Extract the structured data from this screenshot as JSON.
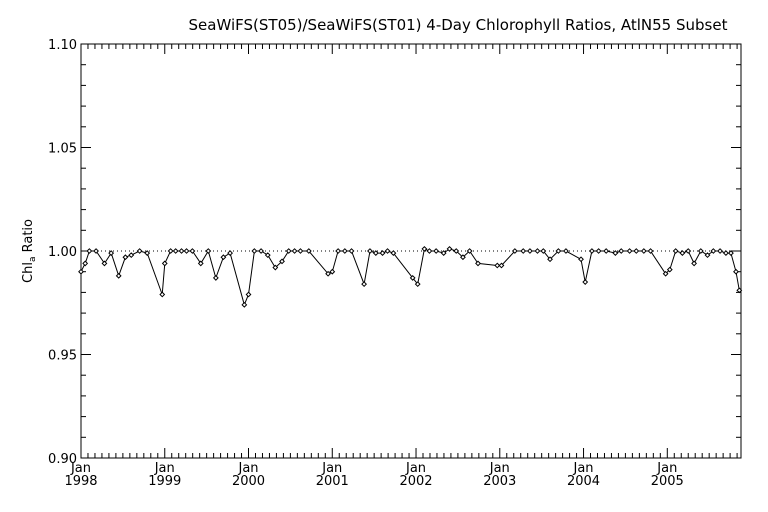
{
  "chart_data": {
    "type": "line",
    "title": "SeaWiFS(ST05)/SeaWiFS(ST01) 4-Day Chlorophyll Ratios, AtlN55 Subset",
    "ylabel": {
      "main": "Chl",
      "sub": "a",
      "rest": " Ratio"
    },
    "xlabel": "",
    "ylim": [
      0.9,
      1.1
    ],
    "xlim": [
      1998.0,
      2005.88
    ],
    "y_ticks": [
      {
        "value": 0.9,
        "label": "0.90"
      },
      {
        "value": 0.95,
        "label": "0.95"
      },
      {
        "value": 1.0,
        "label": "1.00"
      },
      {
        "value": 1.05,
        "label": "1.05"
      },
      {
        "value": 1.1,
        "label": "1.10"
      }
    ],
    "x_ticks": [
      {
        "value": 1998,
        "month": "Jan",
        "year": "1998"
      },
      {
        "value": 1999,
        "month": "Jan",
        "year": "1999"
      },
      {
        "value": 2000,
        "month": "Jan",
        "year": "2000"
      },
      {
        "value": 2001,
        "month": "Jan",
        "year": "2001"
      },
      {
        "value": 2002,
        "month": "Jan",
        "year": "2002"
      },
      {
        "value": 2003,
        "month": "Jan",
        "year": "2003"
      },
      {
        "value": 2004,
        "month": "Jan",
        "year": "2004"
      },
      {
        "value": 2005,
        "month": "Jan",
        "year": "2005"
      }
    ],
    "reference_line": {
      "y": 1.0,
      "style": "dotted"
    },
    "series": [
      {
        "marker": "diamond",
        "points": [
          [
            1998.0,
            0.99
          ],
          [
            1998.05,
            0.994
          ],
          [
            1998.1,
            1.0
          ],
          [
            1998.18,
            1.0
          ],
          [
            1998.28,
            0.994
          ],
          [
            1998.36,
            0.999
          ],
          [
            1998.45,
            0.988
          ],
          [
            1998.53,
            0.997
          ],
          [
            1998.6,
            0.998
          ],
          [
            1998.7,
            1.0
          ],
          [
            1998.79,
            0.999
          ],
          [
            1998.97,
            0.979
          ],
          [
            1999.0,
            0.994
          ],
          [
            1999.07,
            1.0
          ],
          [
            1999.13,
            1.0
          ],
          [
            1999.2,
            1.0
          ],
          [
            1999.26,
            1.0
          ],
          [
            1999.33,
            1.0
          ],
          [
            1999.43,
            0.994
          ],
          [
            1999.52,
            1.0
          ],
          [
            1999.61,
            0.987
          ],
          [
            1999.7,
            0.997
          ],
          [
            1999.78,
            0.999
          ],
          [
            1999.95,
            0.974
          ],
          [
            2000.0,
            0.979
          ],
          [
            2000.07,
            1.0
          ],
          [
            2000.15,
            1.0
          ],
          [
            2000.23,
            0.998
          ],
          [
            2000.32,
            0.992
          ],
          [
            2000.4,
            0.995
          ],
          [
            2000.48,
            1.0
          ],
          [
            2000.55,
            1.0
          ],
          [
            2000.62,
            1.0
          ],
          [
            2000.72,
            1.0
          ],
          [
            2000.95,
            0.989
          ],
          [
            2001.0,
            0.99
          ],
          [
            2001.07,
            1.0
          ],
          [
            2001.15,
            1.0
          ],
          [
            2001.23,
            1.0
          ],
          [
            2001.38,
            0.984
          ],
          [
            2001.45,
            1.0
          ],
          [
            2001.52,
            0.999
          ],
          [
            2001.6,
            0.999
          ],
          [
            2001.66,
            1.0
          ],
          [
            2001.73,
            0.999
          ],
          [
            2001.96,
            0.987
          ],
          [
            2002.02,
            0.984
          ],
          [
            2002.1,
            1.001
          ],
          [
            2002.16,
            1.0
          ],
          [
            2002.24,
            1.0
          ],
          [
            2002.33,
            0.999
          ],
          [
            2002.4,
            1.001
          ],
          [
            2002.48,
            1.0
          ],
          [
            2002.56,
            0.997
          ],
          [
            2002.64,
            1.0
          ],
          [
            2002.74,
            0.994
          ],
          [
            2002.97,
            0.993
          ],
          [
            2003.02,
            0.993
          ],
          [
            2003.18,
            1.0
          ],
          [
            2003.28,
            1.0
          ],
          [
            2003.36,
            1.0
          ],
          [
            2003.45,
            1.0
          ],
          [
            2003.52,
            1.0
          ],
          [
            2003.6,
            0.996
          ],
          [
            2003.7,
            1.0
          ],
          [
            2003.79,
            1.0
          ],
          [
            2003.97,
            0.996
          ],
          [
            2004.02,
            0.985
          ],
          [
            2004.1,
            1.0
          ],
          [
            2004.18,
            1.0
          ],
          [
            2004.27,
            1.0
          ],
          [
            2004.38,
            0.999
          ],
          [
            2004.45,
            1.0
          ],
          [
            2004.55,
            1.0
          ],
          [
            2004.63,
            1.0
          ],
          [
            2004.72,
            1.0
          ],
          [
            2004.8,
            1.0
          ],
          [
            2004.98,
            0.989
          ],
          [
            2005.03,
            0.991
          ],
          [
            2005.1,
            1.0
          ],
          [
            2005.18,
            0.999
          ],
          [
            2005.25,
            1.0
          ],
          [
            2005.32,
            0.994
          ],
          [
            2005.4,
            1.0
          ],
          [
            2005.48,
            0.998
          ],
          [
            2005.55,
            1.0
          ],
          [
            2005.63,
            1.0
          ],
          [
            2005.7,
            0.999
          ],
          [
            2005.76,
            0.999
          ],
          [
            2005.82,
            0.99
          ],
          [
            2005.86,
            0.981
          ]
        ]
      }
    ],
    "grid": false,
    "legend": "none"
  }
}
